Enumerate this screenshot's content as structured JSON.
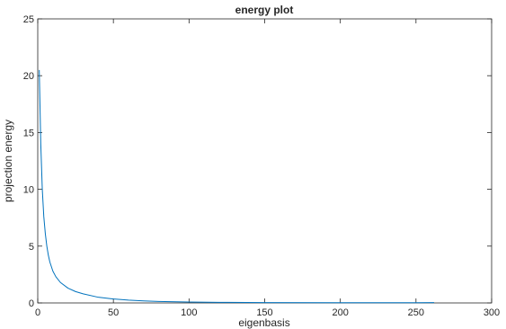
{
  "chart_data": {
    "type": "line",
    "title": "energy plot",
    "xlabel": "eigenbasis",
    "ylabel": "projection energy",
    "xlim": [
      0,
      300
    ],
    "ylim": [
      0,
      25
    ],
    "xticks": [
      0,
      50,
      100,
      150,
      200,
      250,
      300
    ],
    "yticks": [
      0,
      5,
      10,
      15,
      20,
      25
    ],
    "xtick_labels": [
      "0",
      "50",
      "100",
      "150",
      "200",
      "250",
      "300"
    ],
    "ytick_labels": [
      "0",
      "5",
      "10",
      "15",
      "20",
      "25"
    ],
    "box": true,
    "grid": false,
    "series": [
      {
        "color": "#0072bd",
        "x": [
          1,
          2,
          3,
          4,
          5,
          6,
          7,
          8,
          10,
          12,
          15,
          20,
          25,
          30,
          40,
          50,
          60,
          70,
          80,
          100,
          120,
          150,
          200,
          250,
          262
        ],
        "y": [
          20.5,
          14.0,
          10.0,
          7.6,
          6.1,
          5.0,
          4.2,
          3.6,
          2.8,
          2.3,
          1.8,
          1.3,
          1.0,
          0.8,
          0.5,
          0.35,
          0.25,
          0.18,
          0.13,
          0.08,
          0.05,
          0.03,
          0.02,
          0.02,
          0.03
        ]
      }
    ]
  }
}
